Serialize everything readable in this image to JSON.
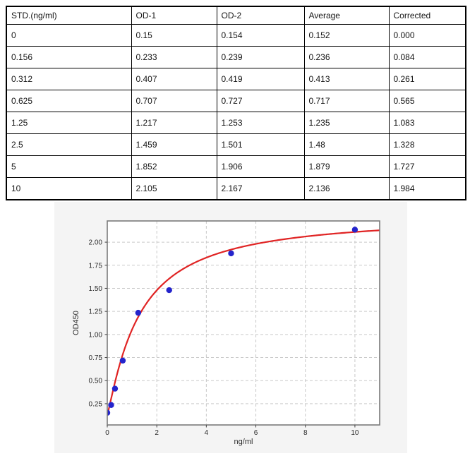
{
  "table": {
    "headers": [
      "STD.(ng/ml)",
      "OD-1",
      "OD-2",
      "Average",
      "Corrected"
    ],
    "rows": [
      [
        "0",
        "0.15",
        "0.154",
        "0.152",
        "0.000"
      ],
      [
        "0.156",
        "0.233",
        "0.239",
        "0.236",
        "0.084"
      ],
      [
        "0.312",
        "0.407",
        "0.419",
        "0.413",
        "0.261"
      ],
      [
        "0.625",
        "0.707",
        "0.727",
        "0.717",
        "0.565"
      ],
      [
        "1.25",
        "1.217",
        "1.253",
        "1.235",
        "1.083"
      ],
      [
        "2.5",
        "1.459",
        "1.501",
        "1.48",
        "1.328"
      ],
      [
        "5",
        "1.852",
        "1.906",
        "1.879",
        "1.727"
      ],
      [
        "10",
        "2.105",
        "2.167",
        "2.136",
        "1.984"
      ]
    ]
  },
  "chart_data": {
    "type": "scatter",
    "title": "",
    "xlabel": "ng/ml",
    "ylabel": "OD450",
    "xlim": [
      0,
      11
    ],
    "ylim": [
      0.02,
      2.23
    ],
    "x_ticks": [
      0,
      2,
      4,
      6,
      8,
      10
    ],
    "x_tick_labels": [
      "0",
      "2",
      "4",
      "6",
      "8",
      "10"
    ],
    "y_ticks": [
      0.25,
      0.5,
      0.75,
      1.0,
      1.25,
      1.5,
      1.75,
      2.0
    ],
    "y_tick_labels": [
      "0.25",
      "0.50",
      "0.75",
      "1.00",
      "1.25",
      "1.50",
      "1.75",
      "2.00"
    ],
    "grid": true,
    "grid_style": "dashed",
    "legend": "none",
    "series": [
      {
        "name": "standard-points",
        "type": "scatter",
        "x": [
          0,
          0.156,
          0.312,
          0.625,
          1.25,
          2.5,
          5,
          10
        ],
        "y": [
          0.152,
          0.236,
          0.413,
          0.717,
          1.235,
          1.48,
          1.879,
          2.136
        ],
        "color": "#2424cc",
        "marker_radius": 4.2
      },
      {
        "name": "4pl-fit-curve",
        "type": "line",
        "model": "4PL",
        "params": {
          "a": 0.13,
          "b": 1.15,
          "c": 1.3,
          "d": 2.3
        },
        "color": "#e02424",
        "line_width": 2.2
      }
    ],
    "colors": {
      "figure_bg": "#f4f4f4",
      "plot_bg": "#ffffff",
      "grid": "#c9c9c9",
      "spine": "#7a7a7a",
      "tick": "#444444",
      "text": "#2b2b2b"
    }
  }
}
